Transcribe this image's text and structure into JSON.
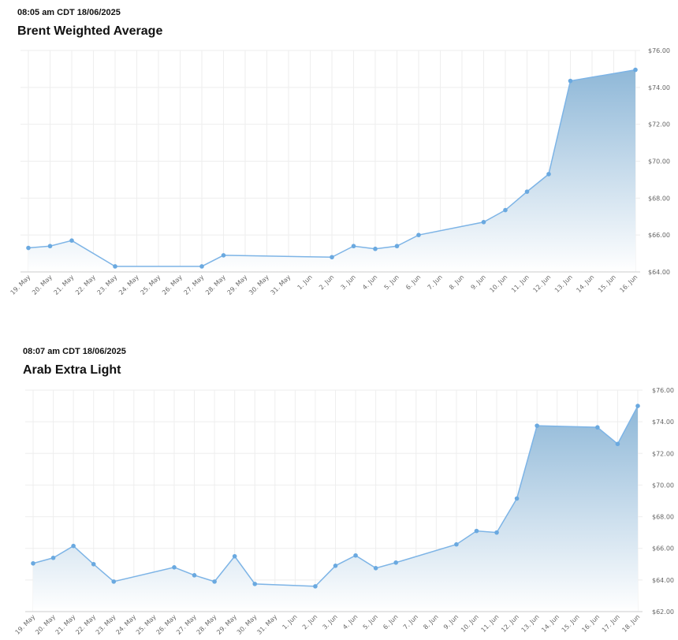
{
  "colors": {
    "line": "#7db4e6",
    "marker": "#6aa9e0",
    "fill_top": "#8fb8d8",
    "fill_bottom": "#ffffff",
    "grid": "#eeeeee"
  },
  "chart_data": [
    {
      "type": "area",
      "timestamp": "08:05 am CDT 18/06/2025",
      "title": "Brent Weighted Average",
      "x_ticks": [
        "19. May",
        "20. May",
        "21. May",
        "22. May",
        "23. May",
        "24. May",
        "25. May",
        "26. May",
        "27. May",
        "28. May",
        "29. May",
        "30. May",
        "31. May",
        "1. Jun",
        "2. Jun",
        "3. Jun",
        "4. Jun",
        "5. Jun",
        "6. Jun",
        "7. Jun",
        "8. Jun",
        "9. Jun",
        "10. Jun",
        "11. Jun",
        "12. Jun",
        "13. Jun",
        "14. Jun",
        "15. Jun",
        "16. Jun"
      ],
      "y_ticks": [
        "$64.00",
        "$66.00",
        "$68.00",
        "$70.00",
        "$72.00",
        "$74.00",
        "$76.00"
      ],
      "ylim": [
        64,
        76
      ],
      "points": [
        {
          "x": "19. May",
          "y": 65.3
        },
        {
          "x": "20. May",
          "y": 65.4
        },
        {
          "x": "21. May",
          "y": 65.7
        },
        {
          "x": "23. May",
          "y": 64.3
        },
        {
          "x": "27. May",
          "y": 64.3
        },
        {
          "x": "28. May",
          "y": 64.9
        },
        {
          "x": "2. Jun",
          "y": 64.8
        },
        {
          "x": "3. Jun",
          "y": 65.4
        },
        {
          "x": "4. Jun",
          "y": 65.25
        },
        {
          "x": "5. Jun",
          "y": 65.4
        },
        {
          "x": "6. Jun",
          "y": 66.0
        },
        {
          "x": "9. Jun",
          "y": 66.7
        },
        {
          "x": "10. Jun",
          "y": 67.35
        },
        {
          "x": "11. Jun",
          "y": 68.35
        },
        {
          "x": "12. Jun",
          "y": 69.3
        },
        {
          "x": "13. Jun",
          "y": 74.35
        },
        {
          "x": "16. Jun",
          "y": 74.95
        }
      ]
    },
    {
      "type": "area",
      "timestamp": "08:07 am CDT 18/06/2025",
      "title": "Arab Extra Light",
      "x_ticks": [
        "19. May",
        "20. May",
        "21. May",
        "22. May",
        "23. May",
        "24. May",
        "25. May",
        "26. May",
        "27. May",
        "28. May",
        "29. May",
        "30. May",
        "31. May",
        "1. Jun",
        "2. Jun",
        "3. Jun",
        "4. Jun",
        "5. Jun",
        "6. Jun",
        "7. Jun",
        "8. Jun",
        "9. Jun",
        "10. Jun",
        "11. Jun",
        "12. Jun",
        "13. Jun",
        "14. Jun",
        "15. Jun",
        "16. Jun",
        "17. Jun",
        "18. Jun"
      ],
      "y_ticks": [
        "$62.00",
        "$64.00",
        "$66.00",
        "$68.00",
        "$70.00",
        "$72.00",
        "$74.00",
        "$76.00"
      ],
      "ylim": [
        62,
        76
      ],
      "points": [
        {
          "x": "19. May",
          "y": 65.05
        },
        {
          "x": "20. May",
          "y": 65.4
        },
        {
          "x": "21. May",
          "y": 66.15
        },
        {
          "x": "22. May",
          "y": 65.0
        },
        {
          "x": "23. May",
          "y": 63.9
        },
        {
          "x": "26. May",
          "y": 64.8
        },
        {
          "x": "27. May",
          "y": 64.3
        },
        {
          "x": "28. May",
          "y": 63.9
        },
        {
          "x": "29. May",
          "y": 65.5
        },
        {
          "x": "30. May",
          "y": 63.75
        },
        {
          "x": "2. Jun",
          "y": 63.6
        },
        {
          "x": "3. Jun",
          "y": 64.9
        },
        {
          "x": "4. Jun",
          "y": 65.55
        },
        {
          "x": "5. Jun",
          "y": 64.75
        },
        {
          "x": "6. Jun",
          "y": 65.1
        },
        {
          "x": "9. Jun",
          "y": 66.25
        },
        {
          "x": "10. Jun",
          "y": 67.1
        },
        {
          "x": "11. Jun",
          "y": 67.0
        },
        {
          "x": "12. Jun",
          "y": 69.15
        },
        {
          "x": "13. Jun",
          "y": 73.75
        },
        {
          "x": "16. Jun",
          "y": 73.65
        },
        {
          "x": "17. Jun",
          "y": 72.6
        },
        {
          "x": "18. Jun",
          "y": 75.0
        }
      ]
    }
  ]
}
